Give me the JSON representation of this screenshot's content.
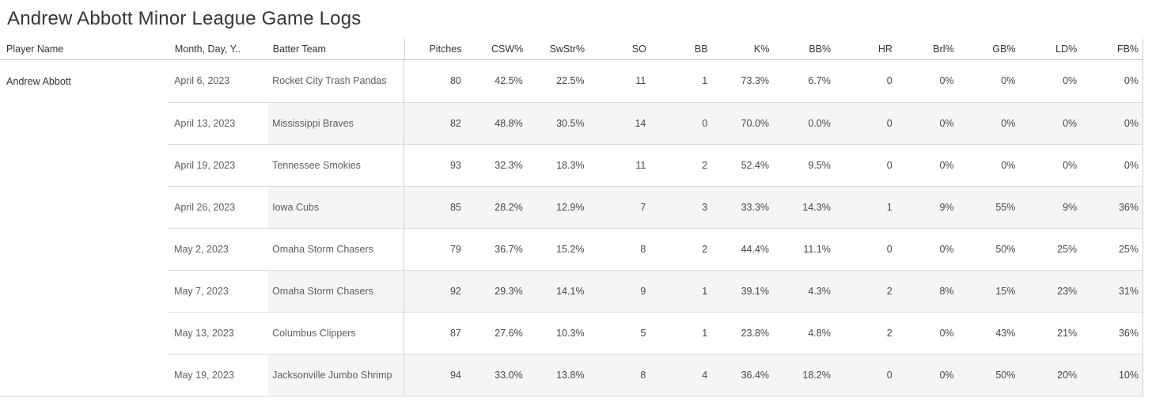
{
  "chart_data": {
    "type": "table",
    "title": "Andrew Abbott Minor League Game Logs",
    "player": "Andrew Abbott",
    "columns": [
      {
        "label": "Player Name",
        "key": "player-name"
      },
      {
        "label": "Month, Day, Y..",
        "key": "month-day-year"
      },
      {
        "label": "Batter Team",
        "key": "batter-team"
      },
      {
        "label": "Pitches",
        "key": "pitches"
      },
      {
        "label": "CSW%",
        "key": "csw-pct"
      },
      {
        "label": "SwStr%",
        "key": "swstr-pct"
      },
      {
        "label": "SO",
        "key": "so"
      },
      {
        "label": "BB",
        "key": "bb"
      },
      {
        "label": "K%",
        "key": "k-pct"
      },
      {
        "label": "BB%",
        "key": "bb-pct"
      },
      {
        "label": "HR",
        "key": "hr"
      },
      {
        "label": "Brl%",
        "key": "brl-pct"
      },
      {
        "label": "GB%",
        "key": "gb-pct"
      },
      {
        "label": "LD%",
        "key": "ld-pct"
      },
      {
        "label": "FB%",
        "key": "fb-pct"
      }
    ],
    "rows": [
      {
        "date": "April 6, 2023",
        "team": "Rocket City Trash Pandas",
        "values": [
          "80",
          "42.5%",
          "22.5%",
          "11",
          "1",
          "73.3%",
          "6.7%",
          "0",
          "0%",
          "0%",
          "0%",
          "0%"
        ]
      },
      {
        "date": "April 13, 2023",
        "team": "Mississippi Braves",
        "values": [
          "82",
          "48.8%",
          "30.5%",
          "14",
          "0",
          "70.0%",
          "0.0%",
          "0",
          "0%",
          "0%",
          "0%",
          "0%"
        ]
      },
      {
        "date": "April 19, 2023",
        "team": "Tennessee Smokies",
        "values": [
          "93",
          "32.3%",
          "18.3%",
          "11",
          "2",
          "52.4%",
          "9.5%",
          "0",
          "0%",
          "0%",
          "0%",
          "0%"
        ]
      },
      {
        "date": "April 26, 2023",
        "team": "Iowa Cubs",
        "values": [
          "85",
          "28.2%",
          "12.9%",
          "7",
          "3",
          "33.3%",
          "14.3%",
          "1",
          "9%",
          "55%",
          "9%",
          "36%"
        ]
      },
      {
        "date": "May 2, 2023",
        "team": "Omaha Storm Chasers",
        "values": [
          "79",
          "36.7%",
          "15.2%",
          "8",
          "2",
          "44.4%",
          "11.1%",
          "0",
          "0%",
          "50%",
          "25%",
          "25%"
        ]
      },
      {
        "date": "May 7, 2023",
        "team": "Omaha Storm Chasers",
        "values": [
          "92",
          "29.3%",
          "14.1%",
          "9",
          "1",
          "39.1%",
          "4.3%",
          "2",
          "8%",
          "15%",
          "23%",
          "31%"
        ]
      },
      {
        "date": "May 13, 2023",
        "team": "Columbus Clippers",
        "values": [
          "87",
          "27.6%",
          "10.3%",
          "5",
          "1",
          "23.8%",
          "4.8%",
          "2",
          "0%",
          "43%",
          "21%",
          "36%"
        ]
      },
      {
        "date": "May 19, 2023",
        "team": "Jacksonville Jumbo Shrimp",
        "values": [
          "94",
          "33.0%",
          "13.8%",
          "8",
          "4",
          "36.4%",
          "18.2%",
          "0",
          "0%",
          "50%",
          "20%",
          "10%"
        ]
      }
    ]
  }
}
